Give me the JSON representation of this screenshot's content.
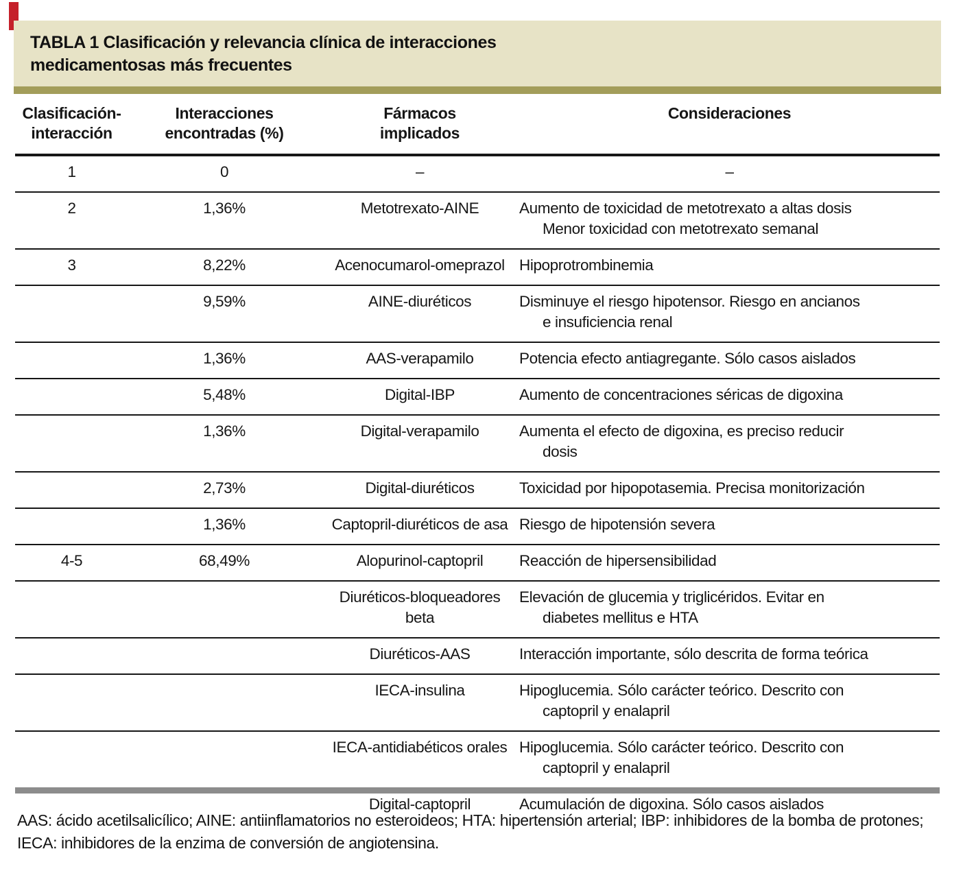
{
  "colors": {
    "band_bg": "#e7e3c6",
    "band_stripe": "#a39d5a",
    "corner_mark": "#c5202a",
    "bottom_bar": "#8c8c8c",
    "rule": "#161616"
  },
  "header": {
    "title_lines": [
      "TABLA 1 Clasificación y relevancia clínica de interacciones",
      "medicamentosas más frecuentes"
    ]
  },
  "table": {
    "columns": [
      {
        "id": "clasificacion",
        "lines": [
          "Clasificación-",
          "interacción"
        ]
      },
      {
        "id": "interacciones",
        "lines": [
          "Interacciones",
          "encontradas (%)"
        ]
      },
      {
        "id": "farmacos",
        "lines": [
          "Fármacos",
          "implicados"
        ]
      },
      {
        "id": "consideraciones",
        "lines": [
          "Consideraciones",
          ""
        ]
      }
    ],
    "rows": [
      {
        "clasificacion": "1",
        "interacciones": "0",
        "farmacos": "–",
        "consideraciones": [
          "–"
        ],
        "consideraciones_center": true
      },
      {
        "clasificacion": "2",
        "interacciones": "1,36%",
        "farmacos": "Metotrexato-AINE",
        "consideraciones": [
          "Aumento de toxicidad de metotrexato a altas dosis",
          "Menor toxicidad con metotrexato semanal"
        ]
      },
      {
        "clasificacion": "3",
        "interacciones": "8,22%",
        "farmacos": "Acenocumarol-omeprazol",
        "consideraciones": [
          "Hipoprotrombinemia"
        ]
      },
      {
        "clasificacion": "",
        "interacciones": "9,59%",
        "farmacos": "AINE-diuréticos",
        "consideraciones": [
          "Disminuye el riesgo hipotensor. Riesgo en ancianos",
          "e insuficiencia renal"
        ]
      },
      {
        "clasificacion": "",
        "interacciones": "1,36%",
        "farmacos": "AAS-verapamilo",
        "consideraciones": [
          "Potencia efecto antiagregante. Sólo casos aislados"
        ]
      },
      {
        "clasificacion": "",
        "interacciones": "5,48%",
        "farmacos": "Digital-IBP",
        "consideraciones": [
          "Aumento de concentraciones séricas de digoxina"
        ]
      },
      {
        "clasificacion": "",
        "interacciones": "1,36%",
        "farmacos": "Digital-verapamilo",
        "consideraciones": [
          "Aumenta el efecto de digoxina, es preciso reducir",
          "dosis"
        ]
      },
      {
        "clasificacion": "",
        "interacciones": "2,73%",
        "farmacos": "Digital-diuréticos",
        "consideraciones": [
          "Toxicidad por hipopotasemia. Precisa monitorización"
        ]
      },
      {
        "clasificacion": "",
        "interacciones": "1,36%",
        "farmacos": "Captopril-diuréticos de asa",
        "consideraciones": [
          "Riesgo de hipotensión severa"
        ]
      },
      {
        "clasificacion": "4-5",
        "interacciones": "68,49%",
        "farmacos": "Alopurinol-captopril",
        "consideraciones": [
          "Reacción de hipersensibilidad"
        ]
      },
      {
        "clasificacion": "",
        "interacciones": "",
        "farmacos": "Diuréticos-bloqueadores\nbeta",
        "consideraciones": [
          "Elevación de glucemia y triglicéridos. Evitar en",
          "diabetes mellitus e HTA"
        ]
      },
      {
        "clasificacion": "",
        "interacciones": "",
        "farmacos": "Diuréticos-AAS",
        "consideraciones": [
          "Interacción importante, sólo descrita de forma teórica"
        ]
      },
      {
        "clasificacion": "",
        "interacciones": "",
        "farmacos": "IECA-insulina",
        "consideraciones": [
          "Hipoglucemia. Sólo carácter teórico. Descrito con",
          "captopril y enalapril"
        ]
      },
      {
        "clasificacion": "",
        "interacciones": "",
        "farmacos": "IECA-antidiabéticos orales",
        "consideraciones": [
          "Hipoglucemia. Sólo carácter teórico. Descrito con",
          "captopril y enalapril"
        ]
      },
      {
        "clasificacion": "",
        "interacciones": "",
        "farmacos": "Digital-captopril",
        "consideraciones": [
          "Acumulación de digoxina. Sólo casos aislados"
        ]
      }
    ]
  },
  "footnote": "AAS: ácido acetilsalicílico; AINE: antiinflamatorios no esteroideos; HTA: hipertensión arterial; IBP: inhibidores de la bomba de protones; IECA: inhibidores de la enzima de conversión de angiotensina."
}
